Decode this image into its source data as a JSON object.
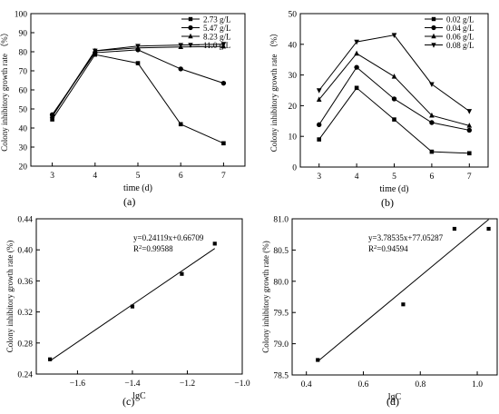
{
  "chart_data": [
    {
      "type": "line",
      "panel": "(a)",
      "xlabel": "time (d)",
      "ylabel": "Colony inhibitory growth rate （%）",
      "x": [
        3,
        4,
        5,
        6,
        7
      ],
      "xlim": [
        2.5,
        7.5
      ],
      "ylim": [
        20,
        100
      ],
      "xticks": [
        3,
        4,
        5,
        6,
        7
      ],
      "yticks": [
        20,
        30,
        40,
        50,
        60,
        70,
        80,
        90,
        100
      ],
      "legend_position": "top-right",
      "series": [
        {
          "name": "2.73 g/L",
          "marker": "square",
          "values": [
            44.5,
            78.5,
            74.0,
            42.0,
            32.0
          ]
        },
        {
          "name": "5.47 g/L",
          "marker": "circle",
          "values": [
            47.0,
            79.5,
            81.0,
            71.0,
            63.5
          ]
        },
        {
          "name": "8.23 g/L",
          "marker": "triangle-up",
          "values": [
            46.5,
            80.5,
            82.0,
            82.5,
            82.8
          ]
        },
        {
          "name": "11.0 g/L",
          "marker": "triangle-down",
          "values": [
            46.0,
            80.5,
            83.0,
            83.5,
            84.0
          ]
        }
      ]
    },
    {
      "type": "line",
      "panel": "(b)",
      "xlabel": "time (d)",
      "ylabel": "Colony inhibitory growth rate （%）",
      "x": [
        3,
        4,
        5,
        6,
        7
      ],
      "xlim": [
        2.5,
        7.5
      ],
      "ylim": [
        0,
        50
      ],
      "xticks": [
        3,
        4,
        5,
        6,
        7
      ],
      "yticks": [
        0,
        10,
        20,
        30,
        40,
        50
      ],
      "legend_position": "top-right",
      "series": [
        {
          "name": "0.02 g/L",
          "marker": "square",
          "values": [
            9.0,
            25.8,
            15.5,
            5.0,
            4.5
          ]
        },
        {
          "name": "0.04 g/L",
          "marker": "circle",
          "values": [
            13.8,
            32.5,
            22.2,
            14.5,
            12.0
          ]
        },
        {
          "name": "0.06 g/L",
          "marker": "triangle-up",
          "values": [
            22.0,
            37.0,
            29.5,
            16.8,
            13.5
          ]
        },
        {
          "name": "0.08 g/L",
          "marker": "triangle-down",
          "values": [
            25.0,
            40.8,
            43.0,
            27.0,
            18.2
          ]
        }
      ]
    },
    {
      "type": "scatter",
      "panel": "(c)",
      "xlabel": "lgC",
      "ylabel": "Colony inhibitory growth rate (%)",
      "xlim": [
        -1.75,
        -1.0
      ],
      "ylim": [
        0.24,
        0.44
      ],
      "xticks": [
        -1.6,
        -1.4,
        -1.2,
        -1.0
      ],
      "xtick_labels": [
        "−1.6",
        "−1.4",
        "−1.2",
        "−1.0"
      ],
      "yticks": [
        0.24,
        0.28,
        0.32,
        0.36,
        0.4,
        0.44
      ],
      "points": [
        {
          "x": -1.7,
          "y": 0.259
        },
        {
          "x": -1.4,
          "y": 0.327
        },
        {
          "x": -1.22,
          "y": 0.369
        },
        {
          "x": -1.1,
          "y": 0.408
        }
      ],
      "fit": {
        "slope": 0.24119,
        "intercept": 0.66709
      },
      "equation": "y=0.24119x+0.66709",
      "r2_label": "R",
      "r2_sup": "2",
      "r2_value": "=0.99588"
    },
    {
      "type": "scatter",
      "panel": "(d)",
      "xlabel": "lgC",
      "ylabel": "Colony inhibitory growth rate (%)",
      "xlim": [
        0.35,
        1.07
      ],
      "ylim": [
        78.5,
        81.0
      ],
      "xticks": [
        0.4,
        0.6,
        0.8,
        1.0
      ],
      "xtick_labels": [
        "0.4",
        "0.6",
        "0.8",
        "1.0"
      ],
      "yticks": [
        78.5,
        79.0,
        79.5,
        80.0,
        80.5,
        81.0
      ],
      "points": [
        {
          "x": 0.44,
          "y": 78.74
        },
        {
          "x": 0.74,
          "y": 79.63
        },
        {
          "x": 0.92,
          "y": 80.84
        },
        {
          "x": 1.04,
          "y": 80.84
        }
      ],
      "fit": {
        "slope": 3.78535,
        "intercept": 77.05287
      },
      "equation": "y=3.78535x+77.05287",
      "r2_label": "R",
      "r2_sup": "2",
      "r2_value": "=0.94594"
    }
  ]
}
